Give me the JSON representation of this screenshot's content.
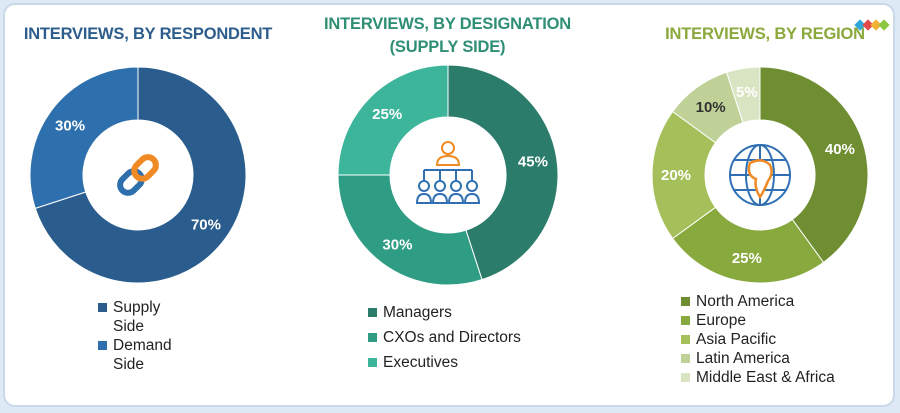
{
  "colors": {
    "respondent_title": "#2c5d8c",
    "designation_title": "#2f8f74",
    "region_title": "#8aa83c"
  },
  "chart_data": [
    {
      "type": "pie",
      "title": "INTERVIEWS, BY RESPONDENT",
      "center_icon": "chain-link-icon",
      "slices": [
        {
          "name": "Supply Side",
          "value": 70,
          "label": "70%",
          "color": "#2a5d8e"
        },
        {
          "name": "Demand Side",
          "value": 30,
          "label": "30%",
          "color": "#2e6fad"
        }
      ]
    },
    {
      "type": "pie",
      "title": "INTERVIEWS, BY DESIGNATION",
      "subtitle": "(SUPPLY SIDE)",
      "center_icon": "organization-chart-icon",
      "slices": [
        {
          "name": "Managers",
          "value": 45,
          "label": "45%",
          "color": "#2b7c6a"
        },
        {
          "name": "CXOs and Directors",
          "value": 30,
          "label": "30%",
          "color": "#2f9d84"
        },
        {
          "name": "Executives",
          "value": 25,
          "label": "25%",
          "color": "#3db59b"
        }
      ]
    },
    {
      "type": "pie",
      "title": "INTERVIEWS, BY REGION",
      "center_icon": "globe-icon",
      "slices": [
        {
          "name": "North America",
          "value": 40,
          "label": "40%",
          "color": "#6f8e32"
        },
        {
          "name": "Europe",
          "value": 25,
          "label": "25%",
          "color": "#88a93d"
        },
        {
          "name": "Asia Pacific",
          "value": 20,
          "label": "20%",
          "color": "#a5c05a"
        },
        {
          "name": "Latin America",
          "value": 10,
          "label": "10%",
          "color": "#bfd197"
        },
        {
          "name": "Middle East & Africa",
          "value": 5,
          "label": "5%",
          "color": "#d9e4c2"
        }
      ]
    }
  ],
  "legends": [
    {
      "items": [
        {
          "label": "Supply Side",
          "lines": [
            "Supply",
            "Side"
          ],
          "color": "#2a5d8e"
        },
        {
          "label": "Demand Side",
          "lines": [
            "Demand",
            "Side"
          ],
          "color": "#2e6fad"
        }
      ]
    },
    {
      "items": [
        {
          "label": "Managers",
          "color": "#2b7c6a"
        },
        {
          "label": "CXOs and Directors",
          "color": "#2f9d84"
        },
        {
          "label": "Executives",
          "color": "#3db59b"
        }
      ]
    },
    {
      "items": [
        {
          "label": "North America",
          "color": "#6f8e32"
        },
        {
          "label": "Europe",
          "color": "#88a93d"
        },
        {
          "label": "Asia Pacific",
          "color": "#a5c05a"
        },
        {
          "label": "Latin America",
          "color": "#bfd197"
        },
        {
          "label": "Middle East & Africa",
          "color": "#d9e4c2"
        }
      ]
    }
  ],
  "logo": {
    "icon": "brand-diamonds-icon",
    "colors": [
      "#2fa8d8",
      "#e24a4a",
      "#f2b134",
      "#8dc63f"
    ]
  }
}
